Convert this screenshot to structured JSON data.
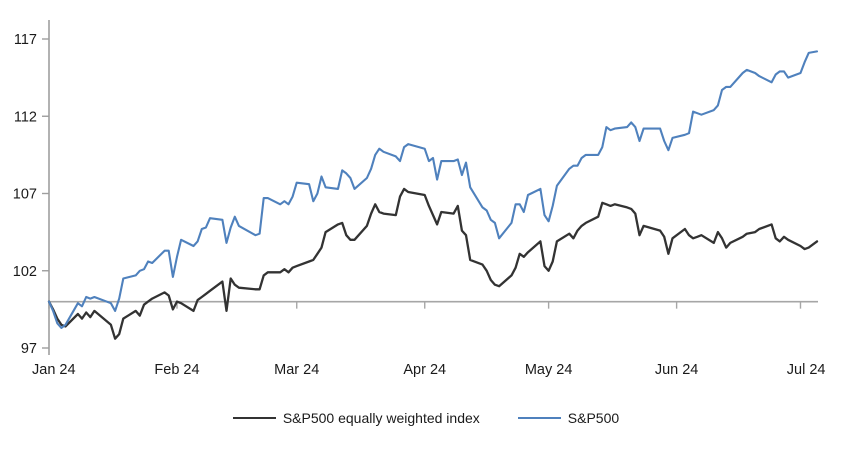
{
  "chart_data": {
    "type": "line",
    "title": "",
    "legend_position": "bottom",
    "grid": "off",
    "colors": {
      "axis": "#9e9e9e",
      "baseline": "#a6a6a6",
      "text": "#1a1a1a"
    },
    "y_axis": {
      "ticks": [
        97,
        102,
        107,
        112,
        117
      ],
      "min": 96.6,
      "max": 117.9
    },
    "x_axis": {
      "tick_labels": [
        "Jan 24",
        "Feb 24",
        "Mar 24",
        "Apr 24",
        "May 24",
        "Jun 24",
        "Jul 24"
      ],
      "tick_dates": [
        "2024-01-01",
        "2024-02-01",
        "2024-03-01",
        "2024-04-01",
        "2024-05-01",
        "2024-06-01",
        "2024-07-01"
      ],
      "baseline_value": 100
    },
    "dates": [
      "2024-01-01",
      "2024-01-02",
      "2024-01-03",
      "2024-01-04",
      "2024-01-05",
      "2024-01-08",
      "2024-01-09",
      "2024-01-10",
      "2024-01-11",
      "2024-01-12",
      "2024-01-16",
      "2024-01-17",
      "2024-01-18",
      "2024-01-19",
      "2024-01-22",
      "2024-01-23",
      "2024-01-24",
      "2024-01-25",
      "2024-01-26",
      "2024-01-29",
      "2024-01-30",
      "2024-01-31",
      "2024-02-01",
      "2024-02-02",
      "2024-02-05",
      "2024-02-06",
      "2024-02-07",
      "2024-02-08",
      "2024-02-09",
      "2024-02-12",
      "2024-02-13",
      "2024-02-14",
      "2024-02-15",
      "2024-02-16",
      "2024-02-20",
      "2024-02-21",
      "2024-02-22",
      "2024-02-23",
      "2024-02-26",
      "2024-02-27",
      "2024-02-28",
      "2024-02-29",
      "2024-03-01",
      "2024-03-04",
      "2024-03-05",
      "2024-03-06",
      "2024-03-07",
      "2024-03-08",
      "2024-03-11",
      "2024-03-12",
      "2024-03-13",
      "2024-03-14",
      "2024-03-15",
      "2024-03-18",
      "2024-03-19",
      "2024-03-20",
      "2024-03-21",
      "2024-03-22",
      "2024-03-25",
      "2024-03-26",
      "2024-03-27",
      "2024-03-28",
      "2024-04-01",
      "2024-04-02",
      "2024-04-03",
      "2024-04-04",
      "2024-04-05",
      "2024-04-08",
      "2024-04-09",
      "2024-04-10",
      "2024-04-11",
      "2024-04-12",
      "2024-04-15",
      "2024-04-16",
      "2024-04-17",
      "2024-04-18",
      "2024-04-19",
      "2024-04-22",
      "2024-04-23",
      "2024-04-24",
      "2024-04-25",
      "2024-04-26",
      "2024-04-29",
      "2024-04-30",
      "2024-05-01",
      "2024-05-02",
      "2024-05-03",
      "2024-05-06",
      "2024-05-07",
      "2024-05-08",
      "2024-05-09",
      "2024-05-10",
      "2024-05-13",
      "2024-05-14",
      "2024-05-15",
      "2024-05-16",
      "2024-05-17",
      "2024-05-20",
      "2024-05-21",
      "2024-05-22",
      "2024-05-23",
      "2024-05-24",
      "2024-05-28",
      "2024-05-29",
      "2024-05-30",
      "2024-05-31",
      "2024-06-03",
      "2024-06-04",
      "2024-06-05",
      "2024-06-06",
      "2024-06-07",
      "2024-06-10",
      "2024-06-11",
      "2024-06-12",
      "2024-06-13",
      "2024-06-14",
      "2024-06-17",
      "2024-06-18",
      "2024-06-20",
      "2024-06-21",
      "2024-06-24",
      "2024-06-25",
      "2024-06-26",
      "2024-06-27",
      "2024-06-28",
      "2024-07-01",
      "2024-07-02",
      "2024-07-03",
      "2024-07-05"
    ],
    "series": [
      {
        "name": "S&P500 equally weighted index",
        "color": "#333333",
        "stroke_width": 2.3,
        "values": [
          100.0,
          99.5,
          98.9,
          98.5,
          98.4,
          99.2,
          98.9,
          99.3,
          99.0,
          99.4,
          98.5,
          97.6,
          97.9,
          98.9,
          99.4,
          99.1,
          99.8,
          100.0,
          100.2,
          100.6,
          100.4,
          99.5,
          100.0,
          99.9,
          99.4,
          100.1,
          100.3,
          100.5,
          100.7,
          101.3,
          99.4,
          101.5,
          101.1,
          100.9,
          100.8,
          100.8,
          101.7,
          101.9,
          101.9,
          102.1,
          101.9,
          102.2,
          102.3,
          102.6,
          102.7,
          103.1,
          103.5,
          104.5,
          105.0,
          105.1,
          104.3,
          104.0,
          104.0,
          104.9,
          105.7,
          106.3,
          105.8,
          105.7,
          105.6,
          106.8,
          107.3,
          107.1,
          106.9,
          106.2,
          105.6,
          105.0,
          105.8,
          105.7,
          106.2,
          104.6,
          104.3,
          102.7,
          102.4,
          102.0,
          101.4,
          101.1,
          101.0,
          101.7,
          102.2,
          103.1,
          102.9,
          103.2,
          103.9,
          102.3,
          102.0,
          102.6,
          103.9,
          104.4,
          104.1,
          104.6,
          104.9,
          105.1,
          105.5,
          106.4,
          106.3,
          106.2,
          106.3,
          106.1,
          106.0,
          105.7,
          104.3,
          104.9,
          104.6,
          104.2,
          103.1,
          104.1,
          104.7,
          104.3,
          104.1,
          104.2,
          104.3,
          103.8,
          104.5,
          104.1,
          103.5,
          103.8,
          104.2,
          104.4,
          104.5,
          104.7,
          105.0,
          104.1,
          103.9,
          104.2,
          104.0,
          103.6,
          103.4,
          103.5,
          103.9
        ]
      },
      {
        "name": "S&P500",
        "color": "#4f81bd",
        "stroke_width": 2.1,
        "values": [
          100.0,
          99.4,
          98.6,
          98.3,
          98.5,
          99.9,
          99.7,
          100.3,
          100.2,
          100.3,
          99.9,
          99.4,
          100.2,
          101.5,
          101.7,
          102.0,
          102.1,
          102.6,
          102.5,
          103.3,
          103.3,
          101.6,
          102.9,
          104.0,
          103.6,
          103.9,
          104.7,
          104.8,
          105.4,
          105.3,
          103.8,
          104.8,
          105.5,
          104.9,
          104.3,
          104.4,
          106.7,
          106.7,
          106.3,
          106.5,
          106.3,
          106.8,
          107.7,
          107.6,
          106.5,
          107.0,
          108.1,
          107.4,
          107.3,
          108.5,
          108.3,
          108.0,
          107.3,
          108.0,
          108.6,
          109.5,
          109.9,
          109.7,
          109.4,
          109.1,
          110.0,
          110.2,
          109.9,
          109.1,
          109.3,
          107.9,
          109.1,
          109.1,
          109.2,
          108.2,
          109.0,
          107.4,
          106.1,
          105.9,
          105.3,
          105.1,
          104.1,
          105.1,
          106.3,
          106.3,
          105.8,
          106.9,
          107.3,
          105.6,
          105.2,
          106.2,
          107.5,
          108.6,
          108.8,
          108.8,
          109.3,
          109.5,
          109.5,
          110.0,
          111.3,
          111.1,
          111.2,
          111.3,
          111.6,
          111.3,
          110.4,
          111.2,
          111.2,
          110.4,
          109.8,
          110.6,
          110.8,
          110.9,
          112.3,
          112.2,
          112.1,
          112.4,
          112.7,
          113.7,
          113.9,
          113.9,
          114.8,
          115.0,
          114.8,
          114.6,
          114.2,
          114.7,
          114.9,
          114.9,
          114.5,
          114.8,
          115.5,
          116.1,
          116.2
        ]
      }
    ]
  }
}
